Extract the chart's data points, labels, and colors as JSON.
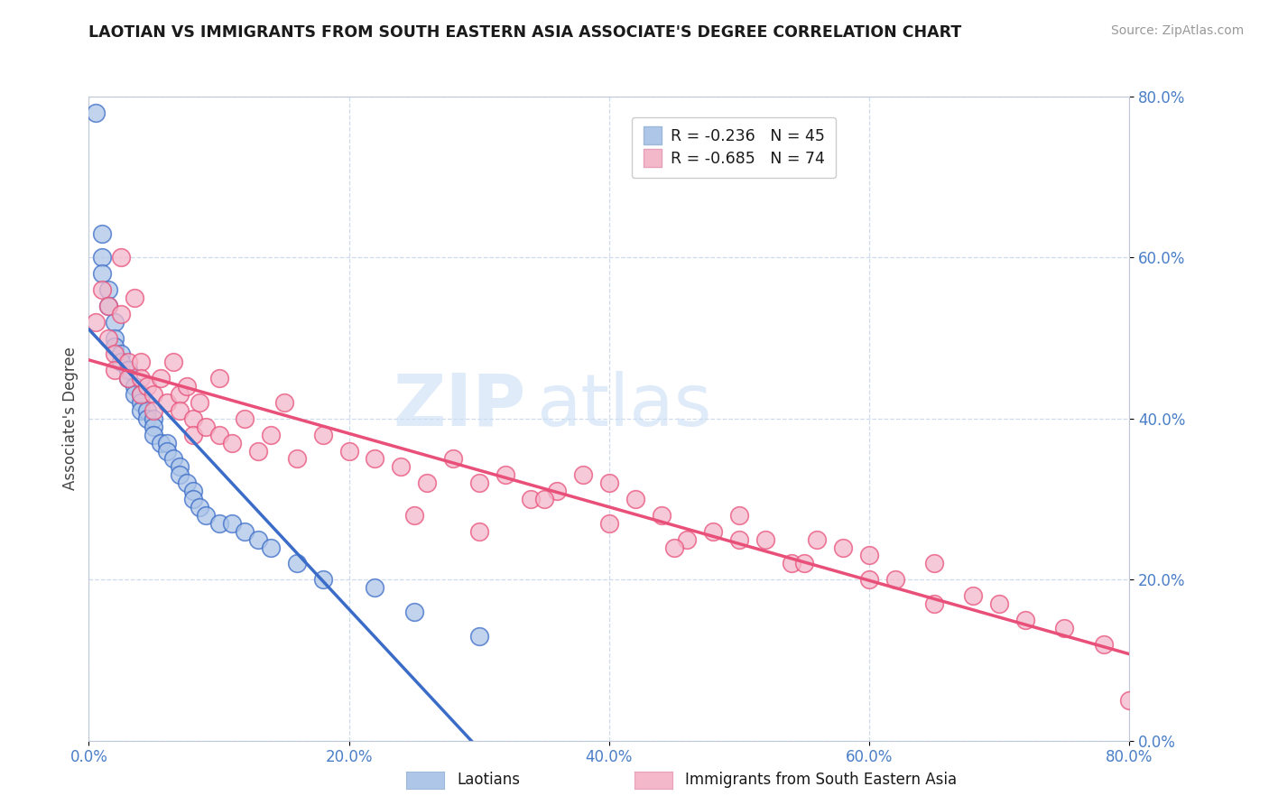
{
  "title": "LAOTIAN VS IMMIGRANTS FROM SOUTH EASTERN ASIA ASSOCIATE'S DEGREE CORRELATION CHART",
  "source": "Source: ZipAtlas.com",
  "ylabel": "Associate's Degree",
  "xlim": [
    0.0,
    0.8
  ],
  "ylim": [
    0.0,
    0.8
  ],
  "legend_label1": "Laotians",
  "legend_label2": "Immigrants from South Eastern Asia",
  "r1": "-0.236",
  "n1": "45",
  "r2": "-0.685",
  "n2": "74",
  "color1": "#aec6e8",
  "color2": "#f4b8cb",
  "line_color1": "#3a6cc8",
  "line_color2": "#e8507a",
  "dashed_color": "#a0b8d8",
  "watermark_zip": "ZIP",
  "watermark_atlas": "atlas",
  "background_color": "#ffffff",
  "tick_color": "#4a7fc8",
  "scatter1_x": [
    0.005,
    0.01,
    0.01,
    0.01,
    0.015,
    0.015,
    0.02,
    0.02,
    0.02,
    0.025,
    0.025,
    0.03,
    0.03,
    0.03,
    0.035,
    0.035,
    0.04,
    0.04,
    0.04,
    0.045,
    0.045,
    0.05,
    0.05,
    0.05,
    0.055,
    0.06,
    0.06,
    0.065,
    0.07,
    0.07,
    0.075,
    0.08,
    0.08,
    0.085,
    0.09,
    0.1,
    0.11,
    0.12,
    0.13,
    0.14,
    0.16,
    0.18,
    0.22,
    0.25,
    0.3
  ],
  "scatter1_y": [
    0.78,
    0.63,
    0.6,
    0.58,
    0.56,
    0.54,
    0.52,
    0.5,
    0.49,
    0.48,
    0.47,
    0.46,
    0.46,
    0.45,
    0.44,
    0.43,
    0.43,
    0.42,
    0.41,
    0.41,
    0.4,
    0.4,
    0.39,
    0.38,
    0.37,
    0.37,
    0.36,
    0.35,
    0.34,
    0.33,
    0.32,
    0.31,
    0.3,
    0.29,
    0.28,
    0.27,
    0.27,
    0.26,
    0.25,
    0.24,
    0.22,
    0.2,
    0.19,
    0.16,
    0.13
  ],
  "scatter2_x": [
    0.005,
    0.01,
    0.015,
    0.015,
    0.02,
    0.02,
    0.025,
    0.025,
    0.03,
    0.03,
    0.035,
    0.04,
    0.04,
    0.04,
    0.045,
    0.05,
    0.05,
    0.055,
    0.06,
    0.065,
    0.07,
    0.07,
    0.075,
    0.08,
    0.08,
    0.085,
    0.09,
    0.1,
    0.1,
    0.11,
    0.12,
    0.13,
    0.14,
    0.15,
    0.16,
    0.18,
    0.2,
    0.22,
    0.24,
    0.26,
    0.28,
    0.3,
    0.32,
    0.34,
    0.36,
    0.38,
    0.4,
    0.42,
    0.44,
    0.46,
    0.48,
    0.5,
    0.52,
    0.54,
    0.56,
    0.58,
    0.6,
    0.62,
    0.65,
    0.68,
    0.7,
    0.72,
    0.75,
    0.78,
    0.8,
    0.25,
    0.3,
    0.35,
    0.4,
    0.45,
    0.5,
    0.55,
    0.6,
    0.65
  ],
  "scatter2_y": [
    0.52,
    0.56,
    0.54,
    0.5,
    0.48,
    0.46,
    0.6,
    0.53,
    0.47,
    0.45,
    0.55,
    0.47,
    0.45,
    0.43,
    0.44,
    0.43,
    0.41,
    0.45,
    0.42,
    0.47,
    0.43,
    0.41,
    0.44,
    0.4,
    0.38,
    0.42,
    0.39,
    0.38,
    0.45,
    0.37,
    0.4,
    0.36,
    0.38,
    0.42,
    0.35,
    0.38,
    0.36,
    0.35,
    0.34,
    0.32,
    0.35,
    0.32,
    0.33,
    0.3,
    0.31,
    0.33,
    0.32,
    0.3,
    0.28,
    0.25,
    0.26,
    0.28,
    0.25,
    0.22,
    0.25,
    0.24,
    0.23,
    0.2,
    0.22,
    0.18,
    0.17,
    0.15,
    0.14,
    0.12,
    0.05,
    0.28,
    0.26,
    0.3,
    0.27,
    0.24,
    0.25,
    0.22,
    0.2,
    0.17
  ]
}
